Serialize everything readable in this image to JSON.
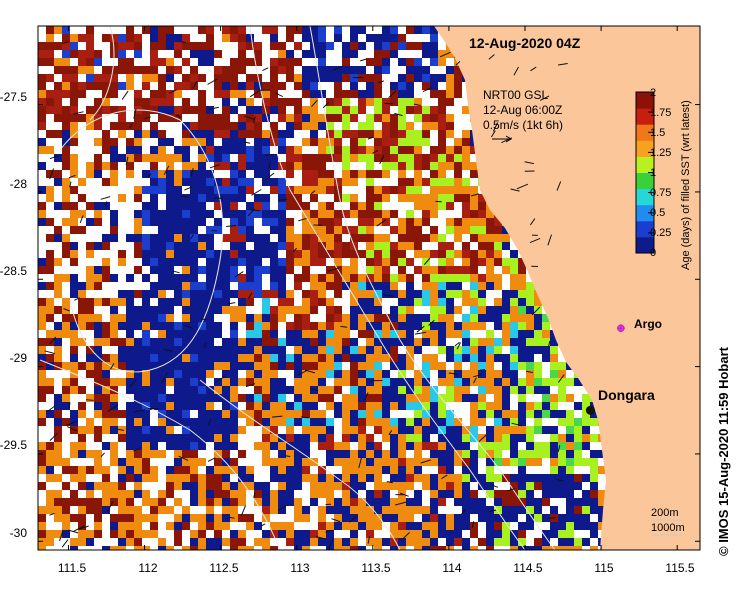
{
  "map": {
    "title": "12-Aug-2020 04Z",
    "current_label": {
      "line1": "NRT00 GSL",
      "line2": "12-Aug 06:00Z",
      "line3": "0.5m/s (1kt 6h)"
    },
    "location_label": "Dongara",
    "argo_label": "Argo",
    "depth_labels": [
      "200m",
      "1000m"
    ],
    "credit": "© IMOS 15-Aug-2020 11:59 Hobart",
    "x_ticks": [
      "111.5",
      "112",
      "112.5",
      "113",
      "113.5",
      "114",
      "114.5",
      "115",
      "115.5"
    ],
    "y_ticks": [
      "-27.5",
      "-28",
      "-28.5",
      "-29",
      "-29.5",
      "-30"
    ],
    "x_range": [
      111.3,
      115.65
    ],
    "y_range": [
      -30.05,
      -27.05
    ],
    "dongara": {
      "lon": 114.93,
      "lat": -29.25
    },
    "argo": {
      "lon": 115.13,
      "lat": -28.78
    }
  },
  "colorbar": {
    "title": "Age (days) of filled SST (wrt latest)",
    "tick_labels": [
      "2",
      "1.75",
      "1.5",
      "1.25",
      "1",
      "0.75",
      "0.5",
      "0.25",
      "0"
    ],
    "colors": [
      "#0d1b8c",
      "#1a3fd0",
      "#1f8cf0",
      "#25d8d8",
      "#3ad03a",
      "#b8f020",
      "#f8a020",
      "#f07818",
      "#c81e10",
      "#8c1208"
    ]
  },
  "colors": {
    "land": "#fbc79a",
    "navy": "#0e1a8c",
    "blue": "#1b3fcc",
    "orange": "#ef8c10",
    "dark_orange": "#d25a12",
    "red": "#a81e10",
    "dark_red": "#8a1608",
    "lime": "#a8f020",
    "cyan": "#29c8e8",
    "green": "#4ad84a"
  }
}
